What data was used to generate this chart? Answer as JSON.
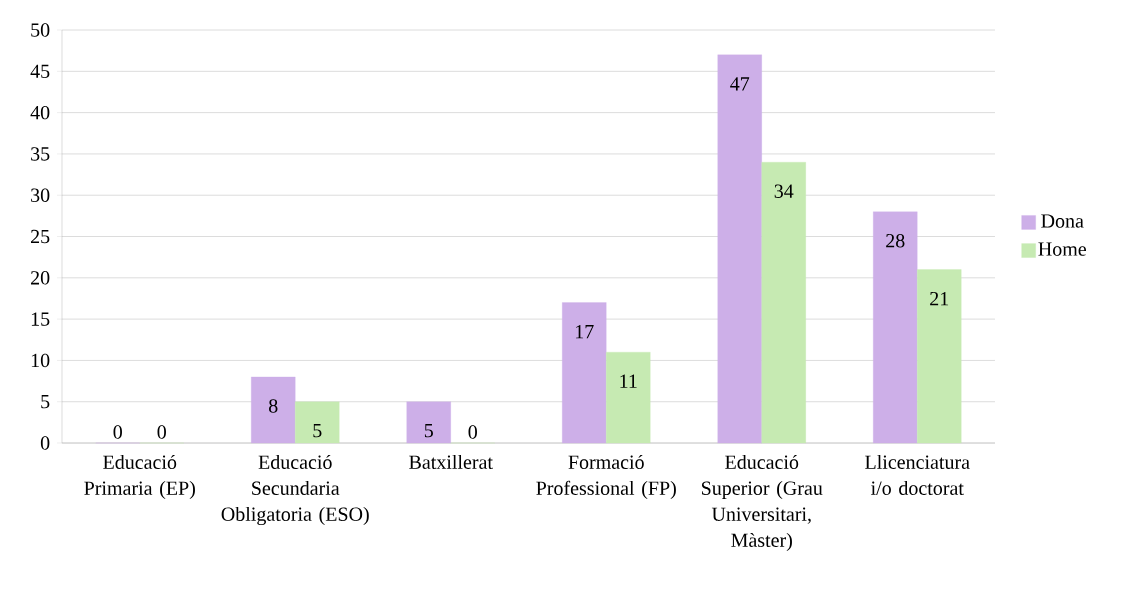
{
  "chart_data": {
    "type": "bar",
    "categories": [
      "Educació Primaria (EP)",
      "Educació Secundaria Obligatoria (ESO)",
      "Batxillerat",
      "Formació Professional (FP)",
      "Educació Superior (Grau Universitari, Màster)",
      "Llicenciatura i/o doctorat"
    ],
    "series": [
      {
        "name": "Dona",
        "color": "#cdafe8",
        "values": [
          0,
          8,
          5,
          17,
          47,
          28
        ]
      },
      {
        "name": "Home",
        "color": "#c6eab2",
        "values": [
          0,
          5,
          0,
          11,
          34,
          21
        ]
      }
    ],
    "ylim": [
      0,
      50
    ],
    "yticks": [
      0,
      5,
      10,
      15,
      20,
      25,
      30,
      35,
      40,
      45,
      50
    ],
    "grid": "y",
    "legend": "right",
    "data_labels": true
  }
}
